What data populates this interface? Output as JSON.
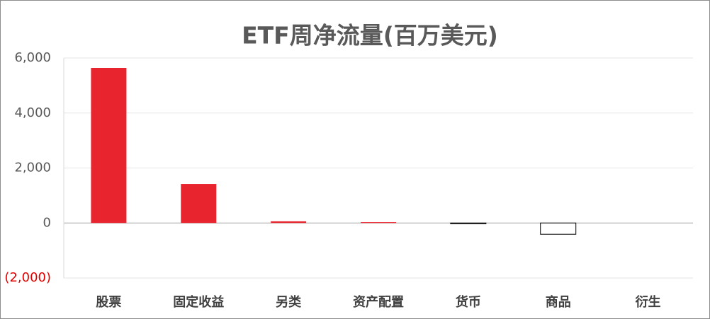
{
  "chart_data": {
    "type": "bar",
    "title": "ETF周净流量(百万美元)",
    "categories": [
      "股票",
      "固定收益",
      "另类",
      "资产配置",
      "货币",
      "商品",
      "衍生"
    ],
    "values": [
      5640,
      1420,
      60,
      30,
      -30,
      -410,
      0
    ],
    "color": "#e8242f",
    "negative_fill": "#ffffff",
    "negative_stroke": "#000000",
    "negative_label_color": "#e00000",
    "ylim": [
      -2000,
      6000
    ],
    "yticks": [
      {
        "value": -2000,
        "label": "(2,000)"
      },
      0,
      {
        "value": 2000,
        "label": "2,000"
      },
      {
        "value": 4000,
        "label": "4,000"
      },
      {
        "value": 6000,
        "label": "6,000"
      }
    ],
    "grid": true
  }
}
